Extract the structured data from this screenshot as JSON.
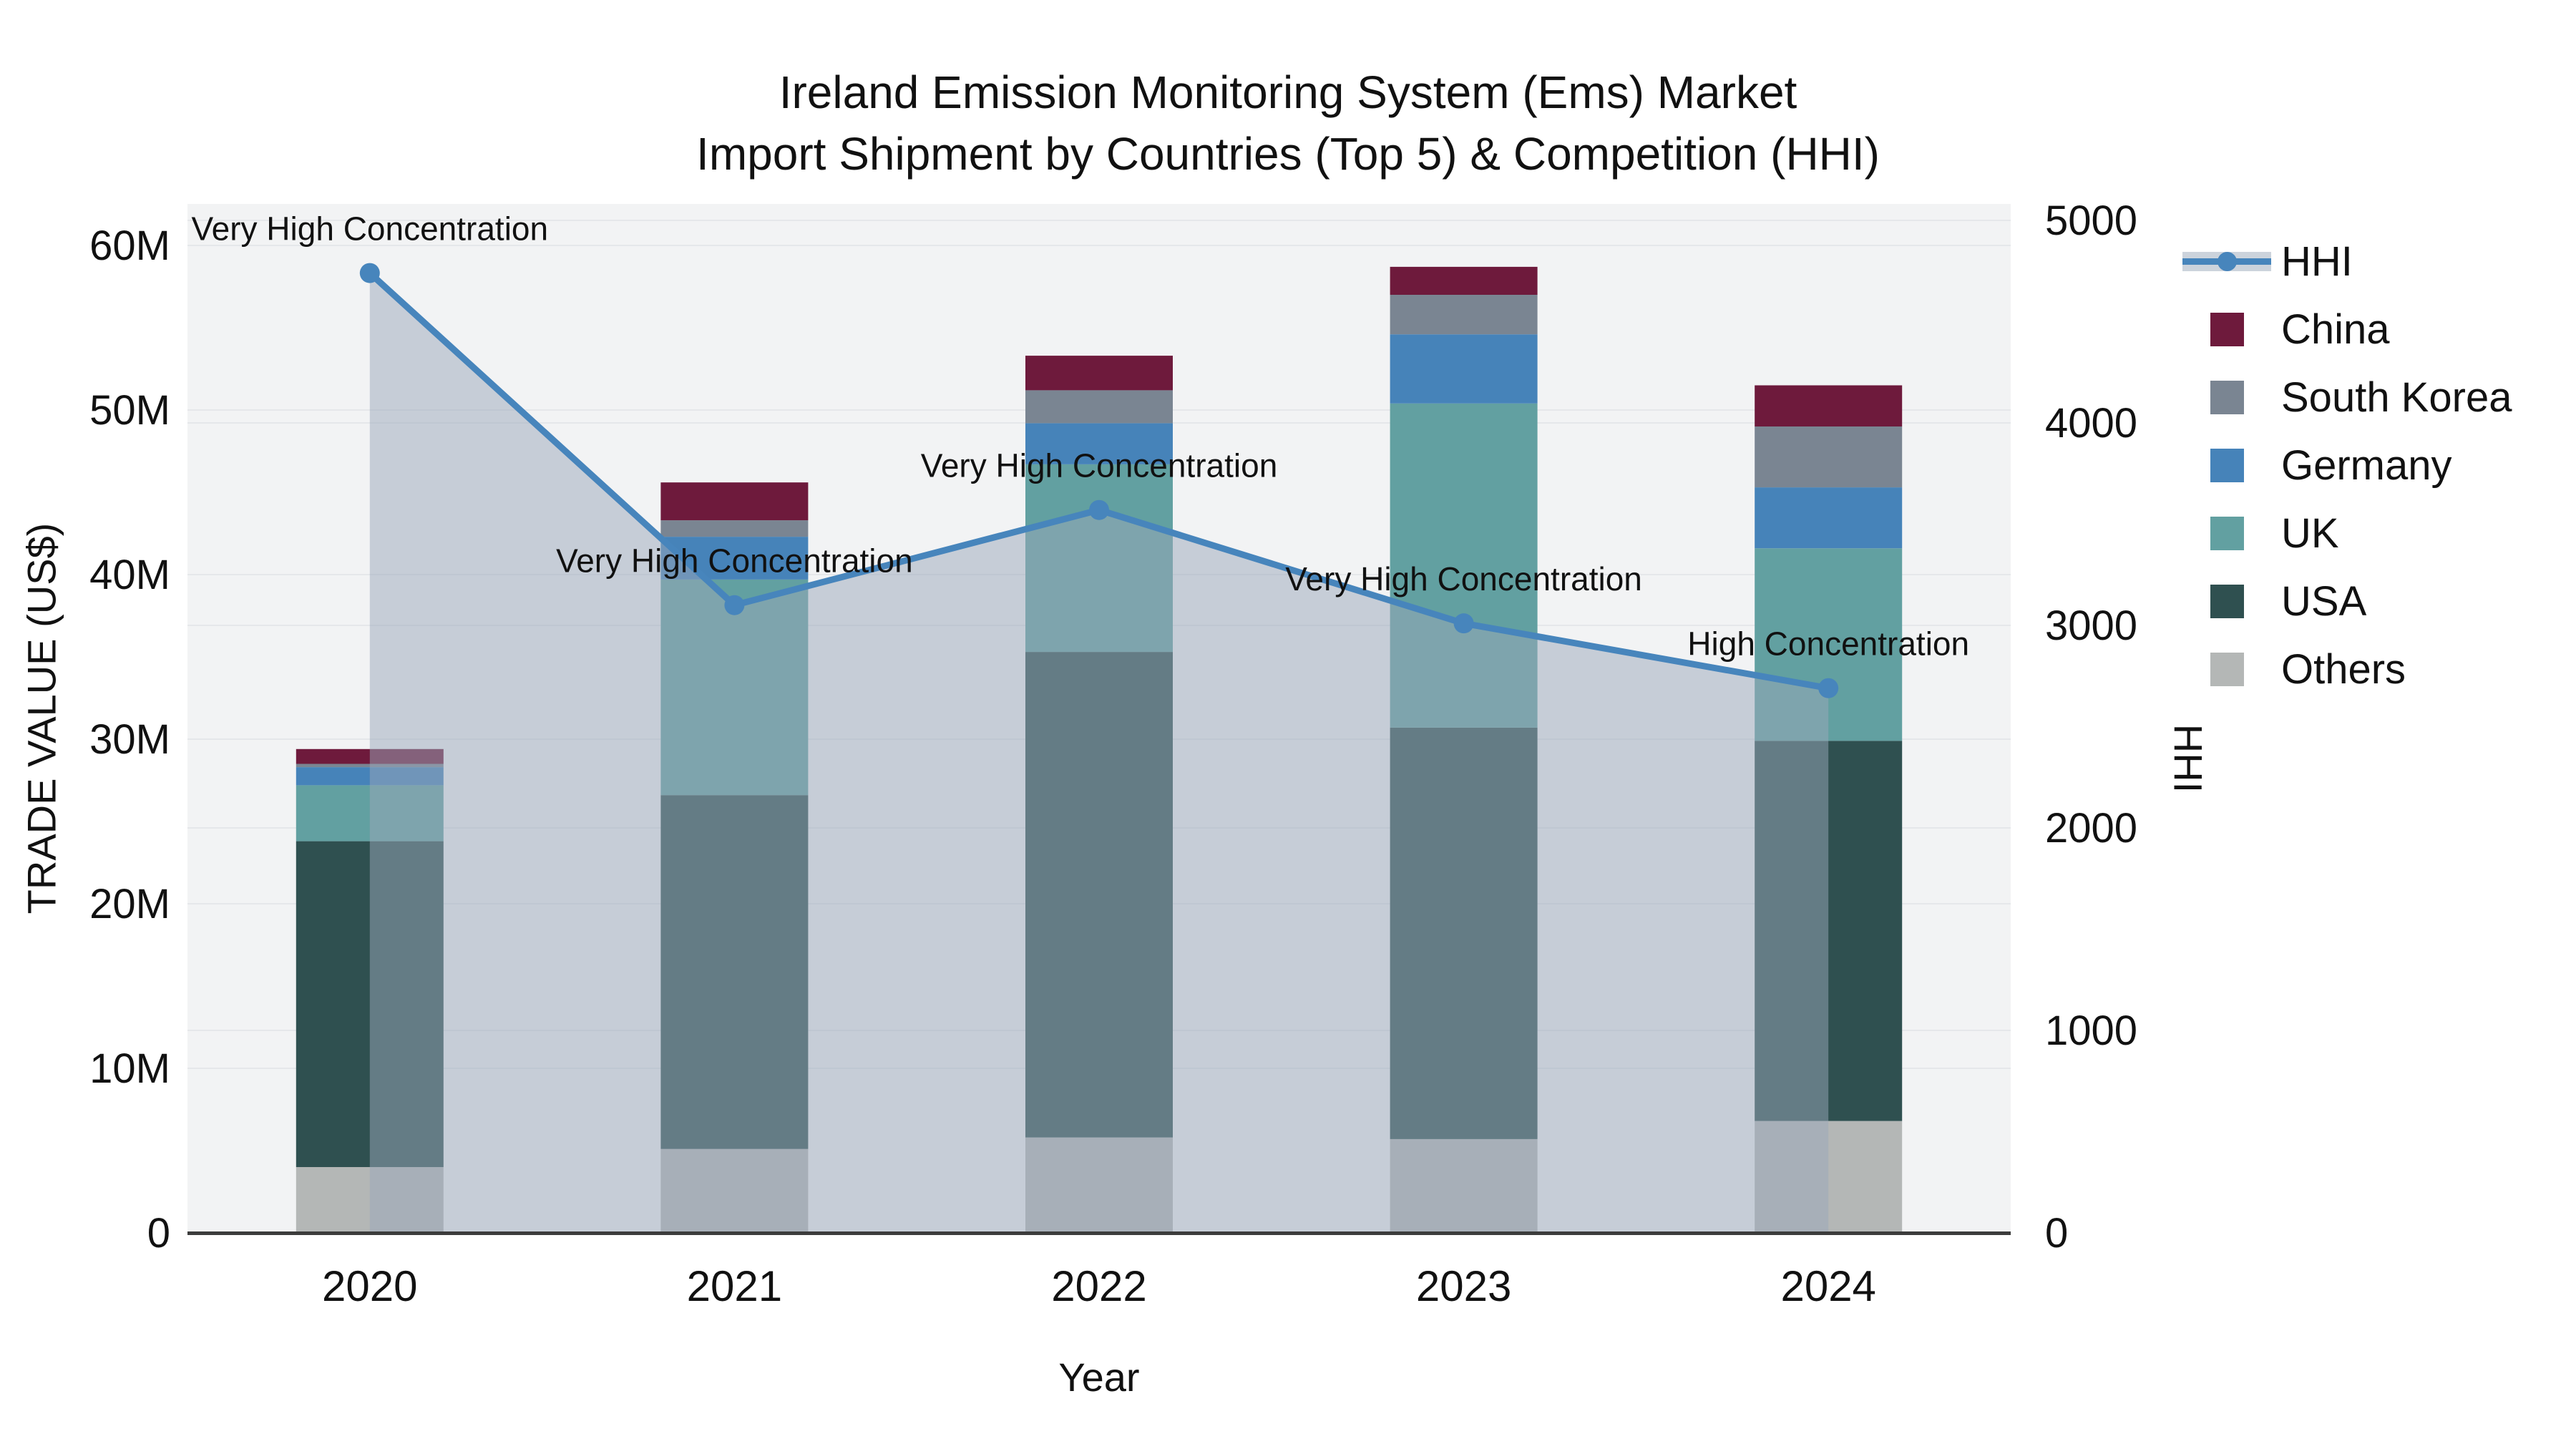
{
  "title": {
    "line1": "Ireland Emission Monitoring System (Ems) Market",
    "line2": "Import Shipment by Countries (Top 5) & Competition (HHI)"
  },
  "axes": {
    "x": {
      "title": "Year"
    },
    "left": {
      "title": "TRADE VALUE (US$)",
      "tick_values_millions": [
        0,
        10,
        20,
        30,
        40,
        50,
        60
      ],
      "tick_labels": [
        "0",
        "10M",
        "20M",
        "30M",
        "40M",
        "50M",
        "60M"
      ]
    },
    "right": {
      "title": "HHI",
      "tick_values": [
        0,
        1000,
        2000,
        3000,
        4000,
        5000
      ],
      "tick_labels": [
        "0",
        "1000",
        "2000",
        "3000",
        "4000",
        "5000"
      ]
    }
  },
  "chart_data": {
    "type": "bar",
    "subtype": "stacked-bars-with-line-overlay",
    "categories": [
      "2020",
      "2021",
      "2022",
      "2023",
      "2024"
    ],
    "bar_value_unit": "millions US$",
    "ylim_left_millions": [
      0,
      62.6
    ],
    "ylim_right_hhi": [
      0,
      5085
    ],
    "grid": true,
    "legend_position": "right",
    "stack_order_bottom_to_top": [
      "Others",
      "USA",
      "UK",
      "Germany",
      "South Korea",
      "China"
    ],
    "series": [
      {
        "name": "Others",
        "color": "#b4b7b6",
        "values": [
          4.0,
          5.1,
          5.8,
          5.7,
          6.8
        ]
      },
      {
        "name": "USA",
        "color": "#2f5050",
        "values": [
          19.8,
          21.5,
          29.5,
          25.0,
          23.1
        ]
      },
      {
        "name": "UK",
        "color": "#62a0a1",
        "values": [
          3.4,
          13.1,
          11.4,
          19.7,
          11.7
        ]
      },
      {
        "name": "Germany",
        "color": "#4683b9",
        "values": [
          1.1,
          2.6,
          2.5,
          4.2,
          3.7
        ]
      },
      {
        "name": "South Korea",
        "color": "#7a8592",
        "values": [
          0.2,
          1.0,
          2.0,
          2.4,
          3.7
        ]
      },
      {
        "name": "China",
        "color": "#6e1a3c",
        "values": [
          0.9,
          2.3,
          2.1,
          1.7,
          2.5
        ]
      }
    ],
    "bar_totals_millions": [
      29.4,
      45.6,
      53.3,
      58.7,
      51.5
    ],
    "hhi_line": {
      "name": "HHI",
      "line_color": "#4785bc",
      "marker_color": "#4785bc",
      "area_fill_color": "#9aa7b9",
      "area_fill_opacity": 0.5,
      "values": [
        4740,
        3100,
        3570,
        3010,
        2690
      ]
    },
    "annotations": [
      {
        "text": "Very High Concentration",
        "category": "2020"
      },
      {
        "text": "Very High Concentration",
        "category": "2021"
      },
      {
        "text": "Very High Concentration",
        "category": "2022"
      },
      {
        "text": "Very High Concentration",
        "category": "2023"
      },
      {
        "text": "High Concentration",
        "category": "2024"
      }
    ]
  },
  "legend": {
    "items": [
      {
        "label": "HHI",
        "type": "line-marker",
        "color": "#4785bc"
      },
      {
        "label": "China",
        "type": "swatch",
        "color": "#6e1a3c"
      },
      {
        "label": "South Korea",
        "type": "swatch",
        "color": "#7a8592"
      },
      {
        "label": "Germany",
        "type": "swatch",
        "color": "#4683b9"
      },
      {
        "label": "UK",
        "type": "swatch",
        "color": "#62a0a1"
      },
      {
        "label": "USA",
        "type": "swatch",
        "color": "#2f5050"
      },
      {
        "label": "Others",
        "type": "swatch",
        "color": "#b4b7b6"
      }
    ]
  },
  "style": {
    "panel_background": "#f2f3f4",
    "gridline_color": "#e5e7ea",
    "axis_line_color": "#3c3c3c",
    "text_color": "#111111"
  }
}
